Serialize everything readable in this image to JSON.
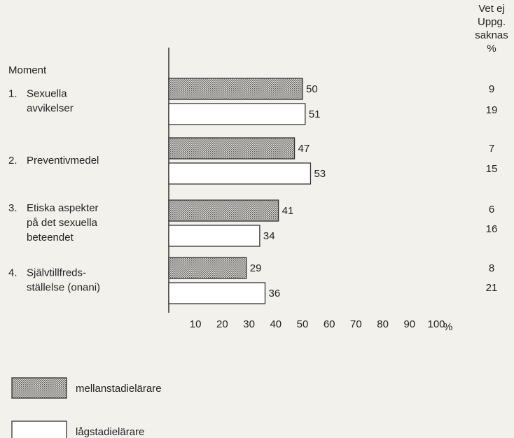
{
  "chart_data": {
    "type": "barh",
    "y_label": "Moment",
    "x_label": "%",
    "side_column_title": [
      "Vet ej",
      "Uppg.",
      "saknas",
      "%"
    ],
    "category_numbers": [
      "1.",
      "2.",
      "3.",
      "4."
    ],
    "categories": [
      [
        "Sexuella",
        "avvikelser"
      ],
      [
        "Preventivmedel"
      ],
      [
        "Etiska aspekter",
        "på det sexuella",
        "beteendet"
      ],
      [
        "Självtillfreds-",
        "ställelse (onani)"
      ]
    ],
    "series": [
      {
        "name": "mellanstadielärare",
        "fill": "dotted",
        "color": "#555555",
        "values": [
          50,
          47,
          41,
          29
        ],
        "side_values": [
          9,
          7,
          6,
          8
        ]
      },
      {
        "name": "lågstadielärare",
        "fill": "plain",
        "color": "#ffffff",
        "values": [
          51,
          53,
          34,
          36
        ],
        "side_values": [
          19,
          15,
          16,
          21
        ]
      }
    ],
    "xlim": [
      0,
      100
    ],
    "xticks": [
      10,
      20,
      30,
      40,
      50,
      60,
      70,
      80,
      90,
      100
    ]
  }
}
